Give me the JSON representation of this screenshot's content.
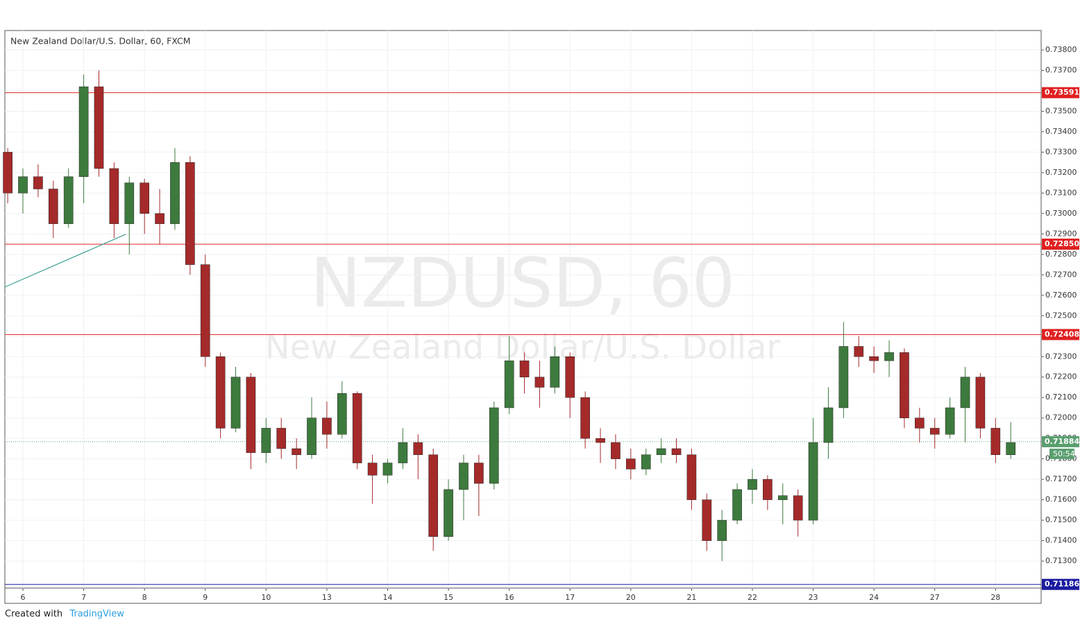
{
  "chart_data": {
    "type": "candlestick",
    "title": "New Zealand Dollar/U.S. Dollar, 60, FXCM",
    "watermark": "NZDUSD, 60",
    "watermark_subtitle": "New Zealand Dollar/U.S. Dollar",
    "footer": {
      "created_with": "Created with",
      "brand": "TradingView"
    },
    "xlim": [
      -0.297,
      16.75
    ],
    "xticks": [
      {
        "value": 0,
        "label": "6"
      },
      {
        "value": 1,
        "label": "7"
      },
      {
        "value": 2,
        "label": "8"
      },
      {
        "value": 3,
        "label": "9"
      },
      {
        "value": 4,
        "label": "10"
      },
      {
        "value": 5,
        "label": "13"
      },
      {
        "value": 6,
        "label": "14"
      },
      {
        "value": 7,
        "label": "15"
      },
      {
        "value": 8,
        "label": "16"
      },
      {
        "value": 9,
        "label": "17"
      },
      {
        "value": 10,
        "label": "20"
      },
      {
        "value": 11,
        "label": "21"
      },
      {
        "value": 12,
        "label": "22"
      },
      {
        "value": 13,
        "label": "23"
      },
      {
        "value": 14,
        "label": "24"
      },
      {
        "value": 15,
        "label": "27"
      },
      {
        "value": 16,
        "label": "28"
      }
    ],
    "ylim": [
      0.71168,
      0.73895
    ],
    "yticks": [
      {
        "value": 0.713,
        "label": "0.71300"
      },
      {
        "value": 0.714,
        "label": "0.71400"
      },
      {
        "value": 0.715,
        "label": "0.71500"
      },
      {
        "value": 0.716,
        "label": "0.71600"
      },
      {
        "value": 0.717,
        "label": "0.71700"
      },
      {
        "value": 0.718,
        "label": "0.71800"
      },
      {
        "value": 0.719,
        "label": "0.71900"
      },
      {
        "value": 0.72,
        "label": "0.72000"
      },
      {
        "value": 0.721,
        "label": "0.72100"
      },
      {
        "value": 0.722,
        "label": "0.72200"
      },
      {
        "value": 0.723,
        "label": "0.72300"
      },
      {
        "value": 0.724,
        "label": "0.72400"
      },
      {
        "value": 0.725,
        "label": "0.72500"
      },
      {
        "value": 0.726,
        "label": "0.72600"
      },
      {
        "value": 0.727,
        "label": "0.72700"
      },
      {
        "value": 0.728,
        "label": "0.72800"
      },
      {
        "value": 0.729,
        "label": "0.72900"
      },
      {
        "value": 0.73,
        "label": "0.73000"
      },
      {
        "value": 0.731,
        "label": "0.73100"
      },
      {
        "value": 0.732,
        "label": "0.73200"
      },
      {
        "value": 0.733,
        "label": "0.73300"
      },
      {
        "value": 0.734,
        "label": "0.73400"
      },
      {
        "value": 0.735,
        "label": "0.73500"
      },
      {
        "value": 0.736,
        "label": "0.73600"
      },
      {
        "value": 0.737,
        "label": "0.73700"
      },
      {
        "value": 0.738,
        "label": "0.73800"
      }
    ],
    "grid": true,
    "up_color": "#3d7a3d",
    "down_color": "#a52a2a",
    "x": [
      -0.25,
      0,
      0.25,
      0.5,
      0.75,
      1,
      1.25,
      1.5,
      1.75,
      2,
      2.25,
      2.5,
      2.75,
      3,
      3.25,
      3.5,
      3.75,
      4,
      4.25,
      4.5,
      4.75,
      5,
      5.25,
      5.5,
      5.75,
      6,
      6.25,
      6.5,
      6.75,
      7,
      7.25,
      7.5,
      7.75,
      8,
      8.25,
      8.5,
      8.75,
      9,
      9.25,
      9.5,
      9.75,
      10,
      10.25,
      10.5,
      10.75,
      11,
      11.25,
      11.5,
      11.75,
      12,
      12.25,
      12.5,
      12.75,
      13,
      13.25,
      13.5,
      13.75,
      14,
      14.25,
      14.5,
      14.75,
      15,
      15.25,
      15.5,
      15.75,
      16,
      16.25
    ],
    "open": [
      0.733,
      0.731,
      0.7318,
      0.7312,
      0.7295,
      0.7318,
      0.7362,
      0.7322,
      0.7295,
      0.7315,
      0.73,
      0.7295,
      0.7325,
      0.7275,
      0.723,
      0.7195,
      0.722,
      0.7183,
      0.7195,
      0.7185,
      0.7182,
      0.72,
      0.7192,
      0.7212,
      0.7178,
      0.7172,
      0.7178,
      0.7188,
      0.7182,
      0.7142,
      0.7165,
      0.7178,
      0.7168,
      0.7205,
      0.7228,
      0.722,
      0.7215,
      0.723,
      0.721,
      0.719,
      0.7188,
      0.718,
      0.7175,
      0.7182,
      0.7185,
      0.7182,
      0.716,
      0.714,
      0.715,
      0.7165,
      0.717,
      0.716,
      0.7162,
      0.715,
      0.7188,
      0.7205,
      0.7235,
      0.723,
      0.7228,
      0.7232,
      0.72,
      0.7195,
      0.7192,
      0.7205,
      0.722,
      0.7195,
      0.7182
    ],
    "high": [
      0.7332,
      0.7322,
      0.7324,
      0.7316,
      0.7322,
      0.7368,
      0.737,
      0.7325,
      0.7318,
      0.7317,
      0.7312,
      0.7332,
      0.7328,
      0.728,
      0.7232,
      0.7225,
      0.7222,
      0.72,
      0.72,
      0.719,
      0.721,
      0.7208,
      0.7218,
      0.7213,
      0.7182,
      0.718,
      0.7195,
      0.7192,
      0.7185,
      0.717,
      0.7182,
      0.7182,
      0.7208,
      0.724,
      0.7232,
      0.7228,
      0.7235,
      0.7232,
      0.7213,
      0.7195,
      0.7192,
      0.7185,
      0.7185,
      0.719,
      0.719,
      0.7185,
      0.7163,
      0.7155,
      0.7168,
      0.7175,
      0.7172,
      0.7168,
      0.7165,
      0.72,
      0.7215,
      0.7247,
      0.724,
      0.7235,
      0.7238,
      0.7234,
      0.7205,
      0.72,
      0.721,
      0.7225,
      0.7222,
      0.72,
      0.7198
    ],
    "low": [
      0.7305,
      0.73,
      0.7308,
      0.7288,
      0.7293,
      0.7305,
      0.7318,
      0.7288,
      0.728,
      0.729,
      0.7285,
      0.7292,
      0.727,
      0.7225,
      0.719,
      0.7193,
      0.7175,
      0.7178,
      0.718,
      0.7175,
      0.718,
      0.7185,
      0.719,
      0.7175,
      0.7158,
      0.7168,
      0.7175,
      0.717,
      0.7135,
      0.714,
      0.715,
      0.7152,
      0.7165,
      0.7202,
      0.7212,
      0.7205,
      0.7212,
      0.72,
      0.7185,
      0.7178,
      0.7175,
      0.717,
      0.7172,
      0.7178,
      0.7178,
      0.7155,
      0.7135,
      0.713,
      0.7148,
      0.7158,
      0.7155,
      0.7148,
      0.7142,
      0.7148,
      0.718,
      0.72,
      0.7225,
      0.7222,
      0.722,
      0.7195,
      0.7188,
      0.7185,
      0.719,
      0.7188,
      0.719,
      0.7178,
      0.718
    ],
    "close": [
      0.731,
      0.7318,
      0.7312,
      0.7295,
      0.7318,
      0.7362,
      0.7322,
      0.7295,
      0.7315,
      0.73,
      0.7295,
      0.7325,
      0.7275,
      0.723,
      0.7195,
      0.722,
      0.7183,
      0.7195,
      0.7185,
      0.7182,
      0.72,
      0.7192,
      0.7212,
      0.7178,
      0.7172,
      0.7178,
      0.7188,
      0.7182,
      0.7142,
      0.7165,
      0.7178,
      0.7168,
      0.7205,
      0.7228,
      0.722,
      0.7215,
      0.723,
      0.721,
      0.719,
      0.7188,
      0.718,
      0.7175,
      0.7182,
      0.7185,
      0.7182,
      0.716,
      0.714,
      0.715,
      0.7165,
      0.717,
      0.716,
      0.7162,
      0.715,
      0.7188,
      0.7205,
      0.7235,
      0.723,
      0.7228,
      0.7232,
      0.72,
      0.7195,
      0.7192,
      0.7205,
      0.722,
      0.7195,
      0.7182,
      0.7188
    ],
    "levels": [
      {
        "value": 0.73591,
        "label": "0.73591",
        "color": "#e02020"
      },
      {
        "value": 0.7285,
        "label": "0.72850",
        "color": "#e02020"
      },
      {
        "value": 0.72408,
        "label": "0.72408",
        "color": "#e02020"
      },
      {
        "value": 0.71186,
        "label": "0.71186",
        "color": "#1a1aa0"
      }
    ],
    "last_price": {
      "value": 0.71884,
      "label": "0.71884",
      "countdown": "50:54",
      "color": "#5a9e6f"
    },
    "trend_line": {
      "x": [
        -0.3,
        1.69
      ],
      "y": [
        0.7264,
        0.72898
      ],
      "color": "#3a9e8f"
    }
  }
}
